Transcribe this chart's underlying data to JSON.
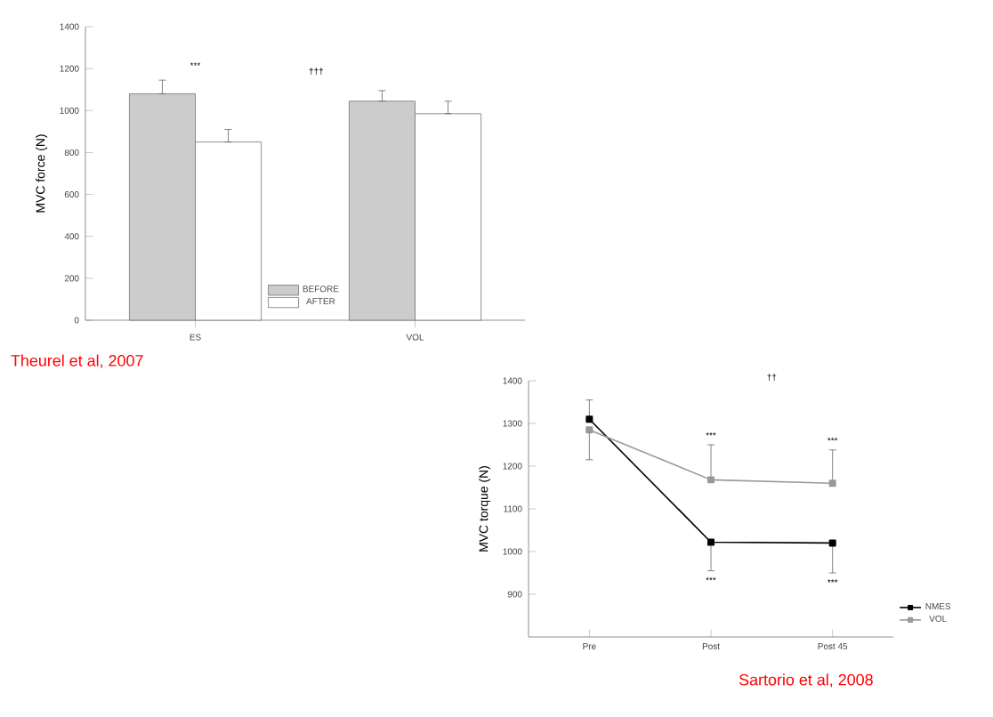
{
  "chart_data": [
    {
      "type": "bar",
      "ylabel": "MVC force (N)",
      "categories": [
        "ES",
        "VOL"
      ],
      "series": [
        {
          "name": "BEFORE",
          "color": "#cccccc",
          "values": [
            1080,
            1045
          ],
          "errors": [
            [
              1080,
              1145
            ],
            [
              1045,
              1095
            ]
          ]
        },
        {
          "name": "AFTER",
          "color": "#ffffff",
          "values": [
            850,
            985
          ],
          "errors": [
            [
              850,
              910
            ],
            [
              985,
              1045
            ]
          ]
        }
      ],
      "ylim": [
        0,
        1400
      ],
      "yticks": [
        0,
        200,
        400,
        600,
        800,
        1000,
        1200,
        1400
      ],
      "legend": "bottom",
      "annotations": [
        "***",
        "†††",
        "Theurel et al, 2007"
      ]
    },
    {
      "type": "line",
      "ylabel": "MVC torque (N)",
      "categories": [
        "Pre",
        "Post",
        "Post 45"
      ],
      "series": [
        {
          "name": "NMES",
          "color": "#000000",
          "values": [
            1310,
            1022,
            1020
          ],
          "errors": [
            [
              1310,
              1355
            ],
            [
              955,
              1022
            ],
            [
              950,
              1020
            ]
          ]
        },
        {
          "name": "VOL",
          "color": "#999999",
          "values": [
            1285,
            1168,
            1160
          ],
          "errors": [
            [
              1215,
              1285
            ],
            [
              1168,
              1250
            ],
            [
              1160,
              1238
            ]
          ]
        }
      ],
      "ylim": [
        800,
        1400
      ],
      "yticks": [
        900,
        1000,
        1100,
        1200,
        1300,
        1400
      ],
      "marker": "square",
      "legend": "right",
      "annotations": [
        "***",
        "***",
        "***",
        "***",
        "††",
        "Sartorio et al, 2008"
      ]
    }
  ]
}
